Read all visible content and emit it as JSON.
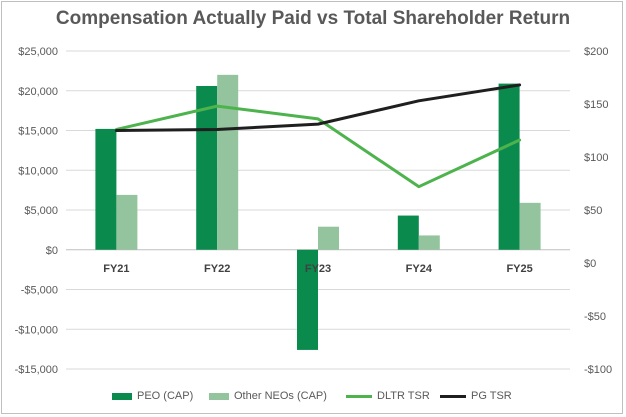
{
  "chart_data": {
    "type": "bar",
    "title": "Compensation Actually Paid vs Total Shareholder Return",
    "categories": [
      "FY21",
      "FY22",
      "FY23",
      "FY24",
      "FY25"
    ],
    "y_left": {
      "ylim": [
        -15000,
        25000
      ],
      "ticks": [
        25000,
        20000,
        15000,
        10000,
        5000,
        0,
        -5000,
        -10000,
        -15000
      ],
      "tick_labels": [
        "$25,000",
        "$20,000",
        "$15,000",
        "$10,000",
        "$5,000",
        "$0",
        "-$5,000",
        "-$10,000",
        "-$15,000"
      ]
    },
    "y_right": {
      "ylim": [
        -100,
        200
      ],
      "ticks": [
        200,
        150,
        100,
        50,
        0,
        -50,
        -100
      ],
      "tick_labels": [
        "$200",
        "$150",
        "$100",
        "$50",
        "$0",
        "-$50",
        "-$100"
      ]
    },
    "series": [
      {
        "name": "PEO (CAP)",
        "type": "bar",
        "axis": "left",
        "color": "#0b8a4e",
        "values": [
          15200,
          20600,
          -12600,
          4300,
          20900
        ]
      },
      {
        "name": "Other NEOs (CAP)",
        "type": "bar",
        "axis": "left",
        "color": "#93c49e",
        "values": [
          6900,
          22000,
          2900,
          1800,
          5900
        ]
      },
      {
        "name": "DLTR TSR",
        "type": "line",
        "axis": "right",
        "color": "#4db34d",
        "values": [
          126,
          148,
          136,
          72,
          116
        ]
      },
      {
        "name": "PG TSR",
        "type": "line",
        "axis": "right",
        "color": "#1f1f1f",
        "values": [
          125,
          126,
          131,
          153,
          168
        ]
      }
    ],
    "grid": true,
    "legend_position": "bottom"
  }
}
